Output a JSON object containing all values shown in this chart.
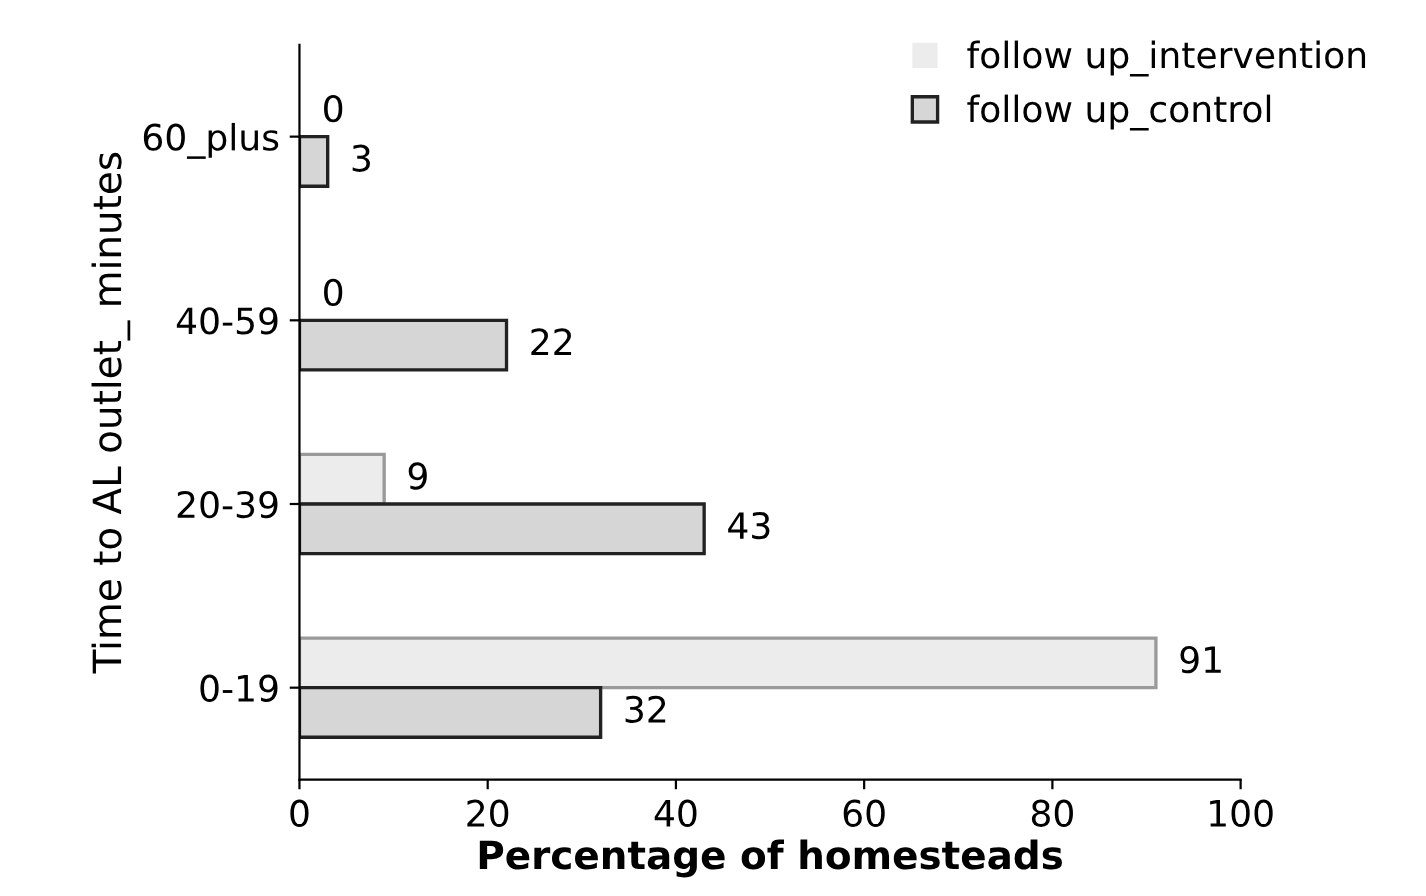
{
  "chart_data": {
    "type": "bar",
    "orientation": "horizontal",
    "xlabel": "Percentage of homesteads",
    "ylabel": "Time to AL outlet_ minutes",
    "categories": [
      "60_plus",
      "40-59",
      "20-39",
      "0-19"
    ],
    "series": [
      {
        "name": "follow up_intervention",
        "color": "#ececec",
        "values": [
          0,
          0,
          9,
          91
        ]
      },
      {
        "name": "follow up_control",
        "color": "#d6d6d6",
        "values": [
          3,
          22,
          43,
          32
        ]
      }
    ],
    "xlim": [
      0,
      100
    ],
    "xticks": [
      0,
      20,
      40,
      60,
      80,
      100
    ],
    "data_labels": true,
    "grid": false,
    "legend": "top right"
  }
}
